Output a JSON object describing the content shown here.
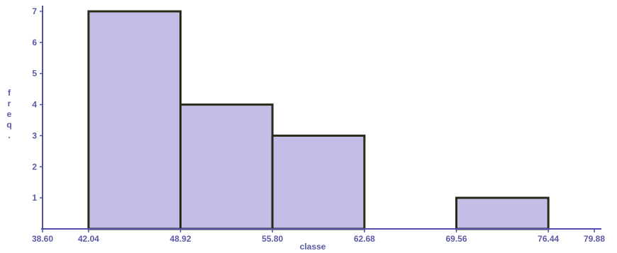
{
  "chart_data": {
    "type": "bar",
    "bins": [
      {
        "from": 42.04,
        "to": 48.92,
        "value": 7
      },
      {
        "from": 48.92,
        "to": 55.8,
        "value": 4
      },
      {
        "from": 55.8,
        "to": 62.68,
        "value": 3
      },
      {
        "from": 69.56,
        "to": 76.44,
        "value": 1
      }
    ],
    "x_ticks": [
      "38.60",
      "42.04",
      "48.92",
      "55.80",
      "62.68",
      "69.56",
      "76.44",
      "79.88"
    ],
    "y_ticks": [
      "1",
      "2",
      "3",
      "4",
      "5",
      "6",
      "7"
    ],
    "xlabel": "classe",
    "ylabel": "freq.",
    "xlim": [
      38.6,
      79.88
    ],
    "ylim": [
      0,
      7
    ],
    "grid": false,
    "bar_fill": "#c4bde6",
    "bar_edge": "#2b2b1a",
    "axis_color": "#5050a8"
  }
}
